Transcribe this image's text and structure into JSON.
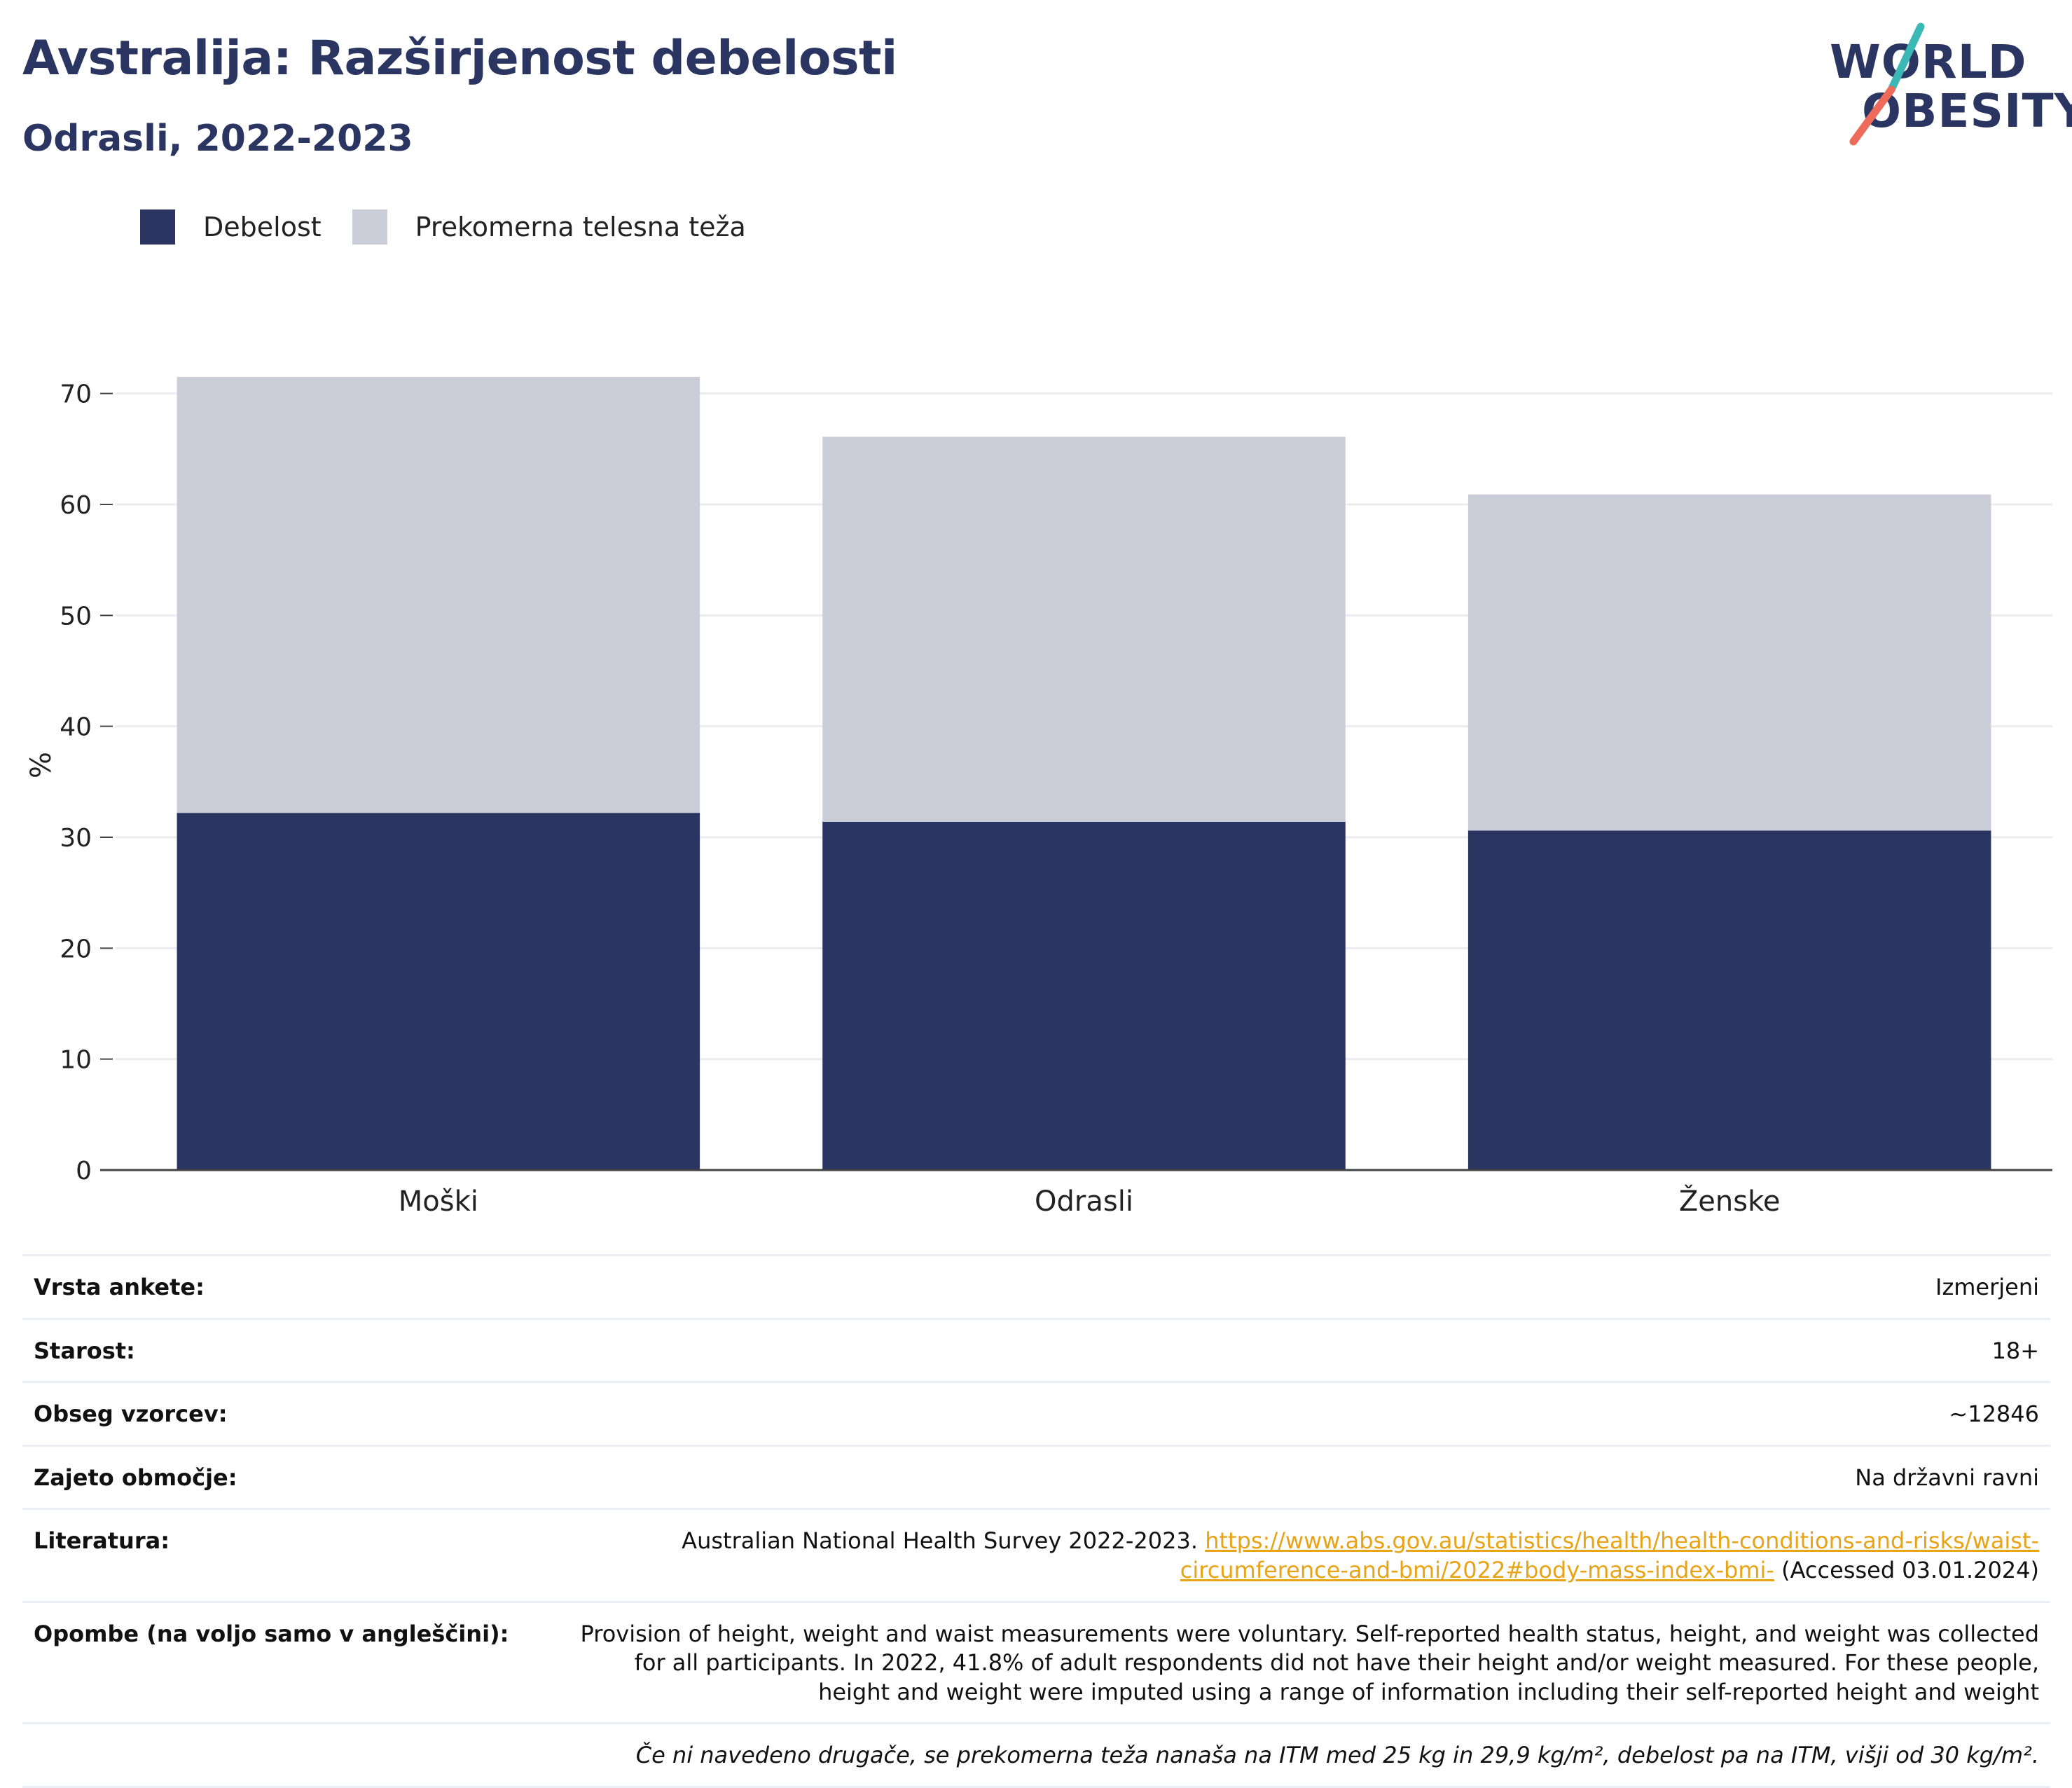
{
  "title": "Avstralija: Razširjenost debelosti",
  "subtitle": "Odrasli, 2022-2023",
  "logo": {
    "line1": "WORLD",
    "line2": "OBESITY",
    "accent_teal": "#3bb7b5",
    "accent_red": "#ee6a5a"
  },
  "colors": {
    "obesity": "#2b3562",
    "overweight": "#cbcdd9",
    "text": "#2b3562",
    "link": "#e8a317"
  },
  "legend": [
    {
      "label": "Debelost",
      "color": "#2b3562"
    },
    {
      "label": "Prekomerna telesna teža",
      "color": "#cbcdd9"
    }
  ],
  "chart_data": {
    "type": "bar",
    "stacked": true,
    "categories": [
      "Moški",
      "Odrasli",
      "Ženske"
    ],
    "series": [
      {
        "name": "Debelost",
        "values": [
          32.2,
          31.4,
          30.6
        ]
      },
      {
        "name": "Prekomerna telesna teža",
        "values": [
          39.3,
          34.7,
          30.3
        ]
      }
    ],
    "ylabel": "%",
    "ylim": [
      0,
      72
    ],
    "yticks": [
      0,
      10,
      20,
      30,
      40,
      50,
      60,
      70
    ],
    "grid": true,
    "legend_position": "top-left"
  },
  "info": {
    "survey_type": {
      "label": "Vrsta ankete:",
      "value": "Izmerjeni"
    },
    "age": {
      "label": "Starost:",
      "value": "18+"
    },
    "sample": {
      "label": "Obseg vzorcev:",
      "value": "~12846"
    },
    "area": {
      "label": "Zajeto območje:",
      "value": "Na državni ravni"
    },
    "literature": {
      "label": "Literatura:",
      "text": "Australian National Health Survey 2022-2023.",
      "link": "https://www.abs.gov.au/statistics/health/health-conditions-and-risks/waist-circumference-and-bmi/2022#body-mass-index-bmi-",
      "accessed": "(Accessed 03.01.2024)"
    },
    "notes": {
      "label": "Opombe (na voljo samo v angleščini):",
      "value": "Provision of height, weight and waist measurements were voluntary. Self-reported health status, height, and weight was collected for all participants. In 2022, 41.8% of adult respondents did not have their height and/or weight measured. For these people, height and weight were imputed using a range of information including their self-reported height and weight"
    },
    "footnote": "Če ni navedeno drugače, se prekomerna teža nanaša na ITM med 25 kg in 29,9 kg/m², debelost pa na ITM, višji od 30 kg/m²."
  }
}
